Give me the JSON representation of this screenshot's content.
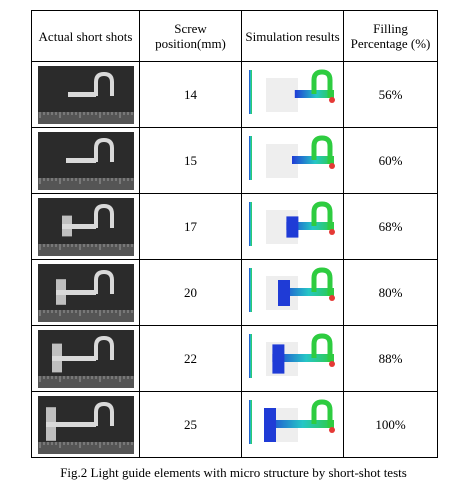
{
  "table": {
    "headers": [
      "Actual short shots",
      "Screw position(mm)",
      "Simulation results",
      "Filling Percentage (%)"
    ],
    "rows": [
      {
        "screw": "14",
        "fill": "56%",
        "fill_fraction": 0.56
      },
      {
        "screw": "15",
        "fill": "60%",
        "fill_fraction": 0.6
      },
      {
        "screw": "17",
        "fill": "68%",
        "fill_fraction": 0.68
      },
      {
        "screw": "20",
        "fill": "80%",
        "fill_fraction": 0.8
      },
      {
        "screw": "22",
        "fill": "88%",
        "fill_fraction": 0.88
      },
      {
        "screw": "25",
        "fill": "100%",
        "fill_fraction": 1.0
      }
    ]
  },
  "caption": "Fig.2 Light guide elements with micro structure by short-shot tests",
  "colors": {
    "photo_bg": "#2b2b2b",
    "part": "#d9d9d9",
    "sim_fill_start": "#1f3bd6",
    "sim_fill_mid": "#26c6c6",
    "sim_fill_end": "#2ecc40",
    "gate": "#e53935"
  }
}
